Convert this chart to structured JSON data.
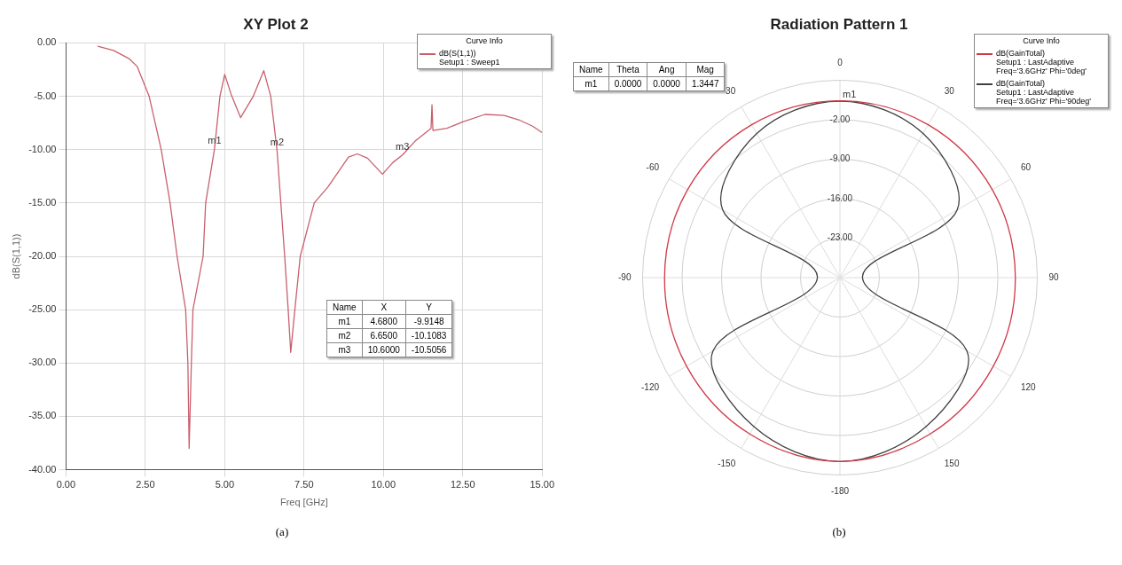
{
  "chart_data": [
    {
      "type": "line",
      "title": "XY Plot 2",
      "xlabel": "Freq [GHz]",
      "ylabel": "dB(S(1,1))",
      "legend_title": "Curve Info",
      "legend": "top right",
      "grid": true,
      "xlim": [
        0,
        15
      ],
      "ylim": [
        -40,
        0
      ],
      "xticks": [
        {
          "value": 0,
          "label": "0.00"
        },
        {
          "value": 2.5,
          "label": "2.50"
        },
        {
          "value": 5,
          "label": "5.00"
        },
        {
          "value": 7.5,
          "label": "7.50"
        },
        {
          "value": 10,
          "label": "10.00"
        },
        {
          "value": 12.5,
          "label": "12.50"
        },
        {
          "value": 15,
          "label": "15.00"
        }
      ],
      "yticks": [
        {
          "value": 0,
          "label": "0.00"
        },
        {
          "value": -5,
          "label": "-5.00"
        },
        {
          "value": -10,
          "label": "-10.00"
        },
        {
          "value": -15,
          "label": "-15.00"
        },
        {
          "value": -20,
          "label": "-20.00"
        },
        {
          "value": -25,
          "label": "-25.00"
        },
        {
          "value": -30,
          "label": "-30.00"
        },
        {
          "value": -35,
          "label": "-35.00"
        },
        {
          "value": -40,
          "label": "-40.00"
        }
      ],
      "series": [
        {
          "name": "dB(S(1,1))\nSetup1 : Sweep1",
          "color": "#c8606c",
          "x": [
            1.0,
            1.5,
            2.0,
            2.24,
            2.62,
            3.0,
            3.28,
            3.5,
            3.77,
            3.84,
            3.88,
            3.95,
            4.0,
            4.32,
            4.4,
            4.68,
            4.85,
            5.0,
            5.2,
            5.5,
            5.9,
            6.23,
            6.45,
            6.65,
            6.89,
            7.0,
            7.08,
            7.21,
            7.38,
            7.82,
            8.25,
            8.9,
            9.18,
            9.5,
            9.97,
            10.3,
            10.6,
            11.0,
            11.5,
            11.53,
            11.56,
            12.0,
            12.5,
            13.2,
            13.8,
            14.26,
            14.7,
            15.0
          ],
          "values": [
            -0.3,
            -0.7,
            -1.5,
            -2.2,
            -5.0,
            -10.0,
            -15.0,
            -20.0,
            -25.0,
            -30.0,
            -38.0,
            -30.0,
            -25.0,
            -20.0,
            -15.0,
            -9.9148,
            -5.0,
            -2.95,
            -4.8,
            -7.0,
            -5.0,
            -2.6,
            -5.0,
            -10.1083,
            -20.0,
            -25.0,
            -29.0,
            -25.0,
            -20.0,
            -15.0,
            -13.5,
            -10.7,
            -10.4,
            -10.8,
            -12.3,
            -11.2,
            -10.5056,
            -9.2,
            -8.0,
            -5.8,
            -8.2,
            -8.0,
            -7.4,
            -6.7,
            -6.8,
            -7.2,
            -7.8,
            -8.4
          ]
        }
      ],
      "annotations": [
        "Name",
        "X",
        "Y",
        "m1",
        "4.6800",
        "-9.9148",
        "m2",
        "6.6500",
        "-10.1083",
        "m3",
        "10.6000",
        "-10.5056",
        {
          "text": "m1",
          "x": 4.68,
          "y": -9.9148
        },
        {
          "text": "m2",
          "x": 6.65,
          "y": -10.1083
        },
        {
          "text": "m3",
          "x": 10.6,
          "y": -10.5056
        },
        "(a)"
      ]
    },
    {
      "type": "radar",
      "title": "Radiation Pattern 1",
      "legend_title": "Curve Info",
      "legend": "top right",
      "grid": true,
      "categories": [
        "0",
        "30",
        "60",
        "90",
        "120",
        "150",
        "-180",
        "-150",
        "-120",
        "-90",
        "-60",
        "-30"
      ],
      "ylim": [
        -30,
        5
      ],
      "yticks": [
        {
          "value": -23,
          "label": "-23.00"
        },
        {
          "value": -16,
          "label": "-16.00"
        },
        {
          "value": -9,
          "label": "-9.00"
        },
        {
          "value": -2,
          "label": "-2.00"
        }
      ],
      "series": [
        {
          "name": "dB(GainTotal)\nSetup1 : LastAdaptive\nFreq='3.6GHz' Phi='0deg'",
          "color": "#d03848",
          "values": [
            1.3447,
            1.3,
            1.2,
            1.1,
            1.4,
            2.0,
            2.6,
            2.0,
            1.4,
            1.1,
            1.2,
            1.3
          ]
        },
        {
          "name": "dB(GainTotal)\nSetup1 : LastAdaptive\nFreq='3.6GHz' Phi='90deg'",
          "color": "#404040",
          "values": [
            1.3,
            -0.5,
            -6.0,
            -26.0,
            -4.0,
            0.5,
            2.6,
            0.5,
            -4.0,
            -26.0,
            -6.0,
            -0.5
          ]
        }
      ],
      "annotations": [
        "Name",
        "Theta",
        "Ang",
        "Mag",
        "m1",
        "0.0000",
        "0.0000",
        "1.3447",
        {
          "text": "m1",
          "x": "0"
        },
        "(b)"
      ]
    }
  ]
}
